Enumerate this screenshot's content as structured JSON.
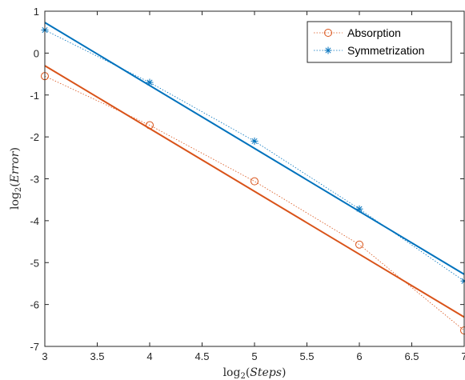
{
  "chart_data": {
    "type": "line",
    "xlabel": "log2(Steps)",
    "ylabel": "log2(Error)",
    "xlim": [
      3,
      7
    ],
    "ylim": [
      -7,
      1
    ],
    "xticks": [
      3,
      3.5,
      4,
      4.5,
      5,
      5.5,
      6,
      6.5,
      7
    ],
    "xtick_labels": [
      "3",
      "3.5",
      "4",
      "4.5",
      "5",
      "5.5",
      "6",
      "6.5",
      "7"
    ],
    "yticks": [
      -7,
      -6,
      -5,
      -4,
      -3,
      -2,
      -1,
      0,
      1
    ],
    "ytick_labels": [
      "-7",
      "-6",
      "-5",
      "-4",
      "-3",
      "-2",
      "-1",
      "0",
      "1"
    ],
    "grid": false,
    "legend_position": "top-right",
    "series": [
      {
        "name": "Absorption",
        "color": "#D95319",
        "marker": "circle",
        "line_style": "dotted",
        "x": [
          3,
          4,
          5,
          6,
          7
        ],
        "y": [
          -0.55,
          -1.72,
          -3.06,
          -4.57,
          -6.62
        ]
      },
      {
        "name": "Symmetrization",
        "color": "#0072BD",
        "marker": "asterisk",
        "line_style": "dotted",
        "x": [
          3,
          4,
          5,
          6,
          7
        ],
        "y": [
          0.55,
          -0.7,
          -2.1,
          -3.72,
          -5.44
        ]
      }
    ],
    "fit_lines": [
      {
        "color": "#D95319",
        "x": [
          3,
          7
        ],
        "y": [
          -0.3,
          -6.3
        ]
      },
      {
        "color": "#0072BD",
        "x": [
          3,
          7
        ],
        "y": [
          0.73,
          -5.28
        ]
      }
    ]
  }
}
